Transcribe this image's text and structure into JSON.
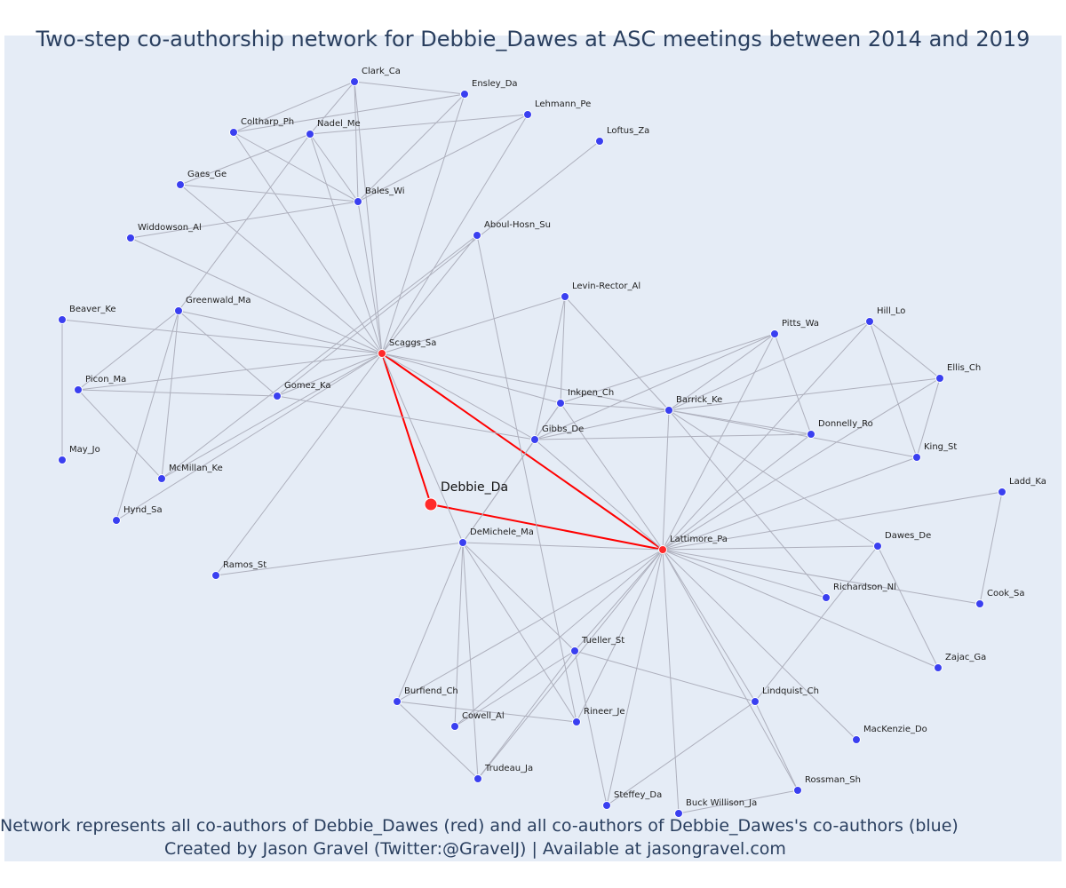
{
  "title": "Two-step co-authorship network for Debbie_Dawes at ASC meetings between 2014 and 2019",
  "caption": {
    "line1": "Network represents all co-authors of Debbie_Dawes (red) and all co-authors of Debbie_Dawes's co-authors (blue)",
    "line2": "Created by Jason Gravel (Twitter:@GravelJ) | Available at jasongravel.com"
  },
  "colors": {
    "red": "#ff2a2a",
    "blue": "#3a3ff0",
    "edge": "#aeb0bd",
    "background": "#e5ecf6",
    "text": "#2a3f5f"
  },
  "network": {
    "center": "Debbie_Da",
    "first_step": [
      "Scaggs_Sa",
      "Lattimore_Pa"
    ],
    "nodes": [
      "Debbie_Da",
      "Scaggs_Sa",
      "Lattimore_Pa",
      "Clark_Ca",
      "Ensley_Da",
      "Lehmann_Pe",
      "Loftus_Za",
      "Coltharp_Ph",
      "Nadel_Me",
      "Gaes_Ge",
      "Bales_Wi",
      "Widdowson_Al",
      "Aboul-Hosn_Su",
      "Levin-Rector_Al",
      "Beaver_Ke",
      "Greenwald_Ma",
      "Picon_Ma",
      "Gomez_Ka",
      "May_Jo",
      "McMillan_Ke",
      "Hynd_Sa",
      "Ramos_St",
      "Pitts_Wa",
      "Hill_Lo",
      "Ellis_Ch",
      "Inkpen_Ch",
      "Barrick_Ke",
      "Gibbs_De",
      "Donnelly_Ro",
      "King_St",
      "Ladd_Ka",
      "DeMichele_Ma",
      "Dawes_De",
      "Richardson_Nl",
      "Cook_Sa",
      "Tueller_St",
      "Zajac_Ga",
      "Burfiend_Ch",
      "Lindquist_Ch",
      "Cowell_Al",
      "Rineer_Je",
      "MacKenzie_Do",
      "Trudeau_Ja",
      "Rossman_Sh",
      "Steffey_Da",
      "Buck Willison_Ja"
    ],
    "edges": [
      [
        "Debbie_Da",
        "Scaggs_Sa"
      ],
      [
        "Debbie_Da",
        "Lattimore_Pa"
      ],
      [
        "Scaggs_Sa",
        "Lattimore_Pa"
      ],
      [
        "Scaggs_Sa",
        "Clark_Ca"
      ],
      [
        "Scaggs_Sa",
        "Ensley_Da"
      ],
      [
        "Scaggs_Sa",
        "Lehmann_Pe"
      ],
      [
        "Scaggs_Sa",
        "Coltharp_Ph"
      ],
      [
        "Scaggs_Sa",
        "Nadel_Me"
      ],
      [
        "Scaggs_Sa",
        "Gaes_Ge"
      ],
      [
        "Scaggs_Sa",
        "Bales_Wi"
      ],
      [
        "Scaggs_Sa",
        "Widdowson_Al"
      ],
      [
        "Scaggs_Sa",
        "Aboul-Hosn_Su"
      ],
      [
        "Scaggs_Sa",
        "Levin-Rector_Al"
      ],
      [
        "Scaggs_Sa",
        "Beaver_Ke"
      ],
      [
        "Scaggs_Sa",
        "Greenwald_Ma"
      ],
      [
        "Scaggs_Sa",
        "Picon_Ma"
      ],
      [
        "Scaggs_Sa",
        "Gomez_Ka"
      ],
      [
        "Scaggs_Sa",
        "McMillan_Ke"
      ],
      [
        "Scaggs_Sa",
        "Hynd_Sa"
      ],
      [
        "Scaggs_Sa",
        "Ramos_St"
      ],
      [
        "Scaggs_Sa",
        "Inkpen_Ch"
      ],
      [
        "Scaggs_Sa",
        "Barrick_Ke"
      ],
      [
        "Scaggs_Sa",
        "Gibbs_De"
      ],
      [
        "Scaggs_Sa",
        "DeMichele_Ma"
      ],
      [
        "Clark_Ca",
        "Ensley_Da"
      ],
      [
        "Clark_Ca",
        "Coltharp_Ph"
      ],
      [
        "Clark_Ca",
        "Nadel_Me"
      ],
      [
        "Clark_Ca",
        "Bales_Wi"
      ],
      [
        "Coltharp_Ph",
        "Ensley_Da"
      ],
      [
        "Coltharp_Ph",
        "Bales_Wi"
      ],
      [
        "Nadel_Me",
        "Lehmann_Pe"
      ],
      [
        "Nadel_Me",
        "Bales_Wi"
      ],
      [
        "Nadel_Me",
        "Gaes_Ge"
      ],
      [
        "Nadel_Me",
        "Greenwald_Ma"
      ],
      [
        "Gaes_Ge",
        "Bales_Wi"
      ],
      [
        "Bales_Wi",
        "Ensley_Da"
      ],
      [
        "Bales_Wi",
        "Lehmann_Pe"
      ],
      [
        "Bales_Wi",
        "Widdowson_Al"
      ],
      [
        "Loftus_Za",
        "Gomez_Ka"
      ],
      [
        "Aboul-Hosn_Su",
        "McMillan_Ke"
      ],
      [
        "Aboul-Hosn_Su",
        "Rineer_Je"
      ],
      [
        "Beaver_Ke",
        "May_Jo"
      ],
      [
        "Greenwald_Ma",
        "Picon_Ma"
      ],
      [
        "Greenwald_Ma",
        "Gomez_Ka"
      ],
      [
        "Greenwald_Ma",
        "McMillan_Ke"
      ],
      [
        "Greenwald_Ma",
        "Hynd_Sa"
      ],
      [
        "Picon_Ma",
        "McMillan_Ke"
      ],
      [
        "Picon_Ma",
        "Gomez_Ka"
      ],
      [
        "Gomez_Ka",
        "Gibbs_De"
      ],
      [
        "Levin-Rector_Al",
        "Inkpen_Ch"
      ],
      [
        "Levin-Rector_Al",
        "Barrick_Ke"
      ],
      [
        "Levin-Rector_Al",
        "Gibbs_De"
      ],
      [
        "Lattimore_Pa",
        "Pitts_Wa"
      ],
      [
        "Lattimore_Pa",
        "Hill_Lo"
      ],
      [
        "Lattimore_Pa",
        "Ellis_Ch"
      ],
      [
        "Lattimore_Pa",
        "Inkpen_Ch"
      ],
      [
        "Lattimore_Pa",
        "Barrick_Ke"
      ],
      [
        "Lattimore_Pa",
        "Gibbs_De"
      ],
      [
        "Lattimore_Pa",
        "Donnelly_Ro"
      ],
      [
        "Lattimore_Pa",
        "King_St"
      ],
      [
        "Lattimore_Pa",
        "Ladd_Ka"
      ],
      [
        "Lattimore_Pa",
        "DeMichele_Ma"
      ],
      [
        "Lattimore_Pa",
        "Dawes_De"
      ],
      [
        "Lattimore_Pa",
        "Richardson_Nl"
      ],
      [
        "Lattimore_Pa",
        "Cook_Sa"
      ],
      [
        "Lattimore_Pa",
        "Tueller_St"
      ],
      [
        "Lattimore_Pa",
        "Zajac_Ga"
      ],
      [
        "Lattimore_Pa",
        "Burfiend_Ch"
      ],
      [
        "Lattimore_Pa",
        "Lindquist_Ch"
      ],
      [
        "Lattimore_Pa",
        "Cowell_Al"
      ],
      [
        "Lattimore_Pa",
        "Rineer_Je"
      ],
      [
        "Lattimore_Pa",
        "MacKenzie_Do"
      ],
      [
        "Lattimore_Pa",
        "Trudeau_Ja"
      ],
      [
        "Lattimore_Pa",
        "Rossman_Sh"
      ],
      [
        "Lattimore_Pa",
        "Steffey_Da"
      ],
      [
        "Lattimore_Pa",
        "Buck Willison_Ja"
      ],
      [
        "Pitts_Wa",
        "Inkpen_Ch"
      ],
      [
        "Pitts_Wa",
        "Barrick_Ke"
      ],
      [
        "Pitts_Wa",
        "Gibbs_De"
      ],
      [
        "Pitts_Wa",
        "Donnelly_Ro"
      ],
      [
        "Hill_Lo",
        "Ellis_Ch"
      ],
      [
        "Hill_Lo",
        "King_St"
      ],
      [
        "Hill_Lo",
        "Barrick_Ke"
      ],
      [
        "Ellis_Ch",
        "King_St"
      ],
      [
        "Ellis_Ch",
        "Barrick_Ke"
      ],
      [
        "Inkpen_Ch",
        "Barrick_Ke"
      ],
      [
        "Inkpen_Ch",
        "Gibbs_De"
      ],
      [
        "Barrick_Ke",
        "Gibbs_De"
      ],
      [
        "Barrick_Ke",
        "Donnelly_Ro"
      ],
      [
        "Barrick_Ke",
        "King_St"
      ],
      [
        "Barrick_Ke",
        "Dawes_De"
      ],
      [
        "Barrick_Ke",
        "Richardson_Nl"
      ],
      [
        "Gibbs_De",
        "Donnelly_Ro"
      ],
      [
        "Gibbs_De",
        "DeMichele_Ma"
      ],
      [
        "Inkpen_Ch",
        "DeMichele_Ma"
      ],
      [
        "Ladd_Ka",
        "Cook_Sa"
      ],
      [
        "Dawes_De",
        "Zajac_Ga"
      ],
      [
        "Dawes_De",
        "Lindquist_Ch"
      ],
      [
        "DeMichele_Ma",
        "Ramos_St"
      ],
      [
        "DeMichele_Ma",
        "Tueller_St"
      ],
      [
        "DeMichele_Ma",
        "Burfiend_Ch"
      ],
      [
        "DeMichele_Ma",
        "Cowell_Al"
      ],
      [
        "DeMichele_Ma",
        "Rineer_Je"
      ],
      [
        "DeMichele_Ma",
        "Trudeau_Ja"
      ],
      [
        "Tueller_St",
        "Lindquist_Ch"
      ],
      [
        "Tueller_St",
        "Cowell_Al"
      ],
      [
        "Tueller_St",
        "Trudeau_Ja"
      ],
      [
        "Tueller_St",
        "Steffey_Da"
      ],
      [
        "Burfiend_Ch",
        "Rineer_Je"
      ],
      [
        "Burfiend_Ch",
        "Trudeau_Ja"
      ],
      [
        "Lindquist_Ch",
        "Steffey_Da"
      ],
      [
        "Lindquist_Ch",
        "Rossman_Sh"
      ],
      [
        "Rossman_Sh",
        "Buck Willison_Ja"
      ]
    ]
  }
}
